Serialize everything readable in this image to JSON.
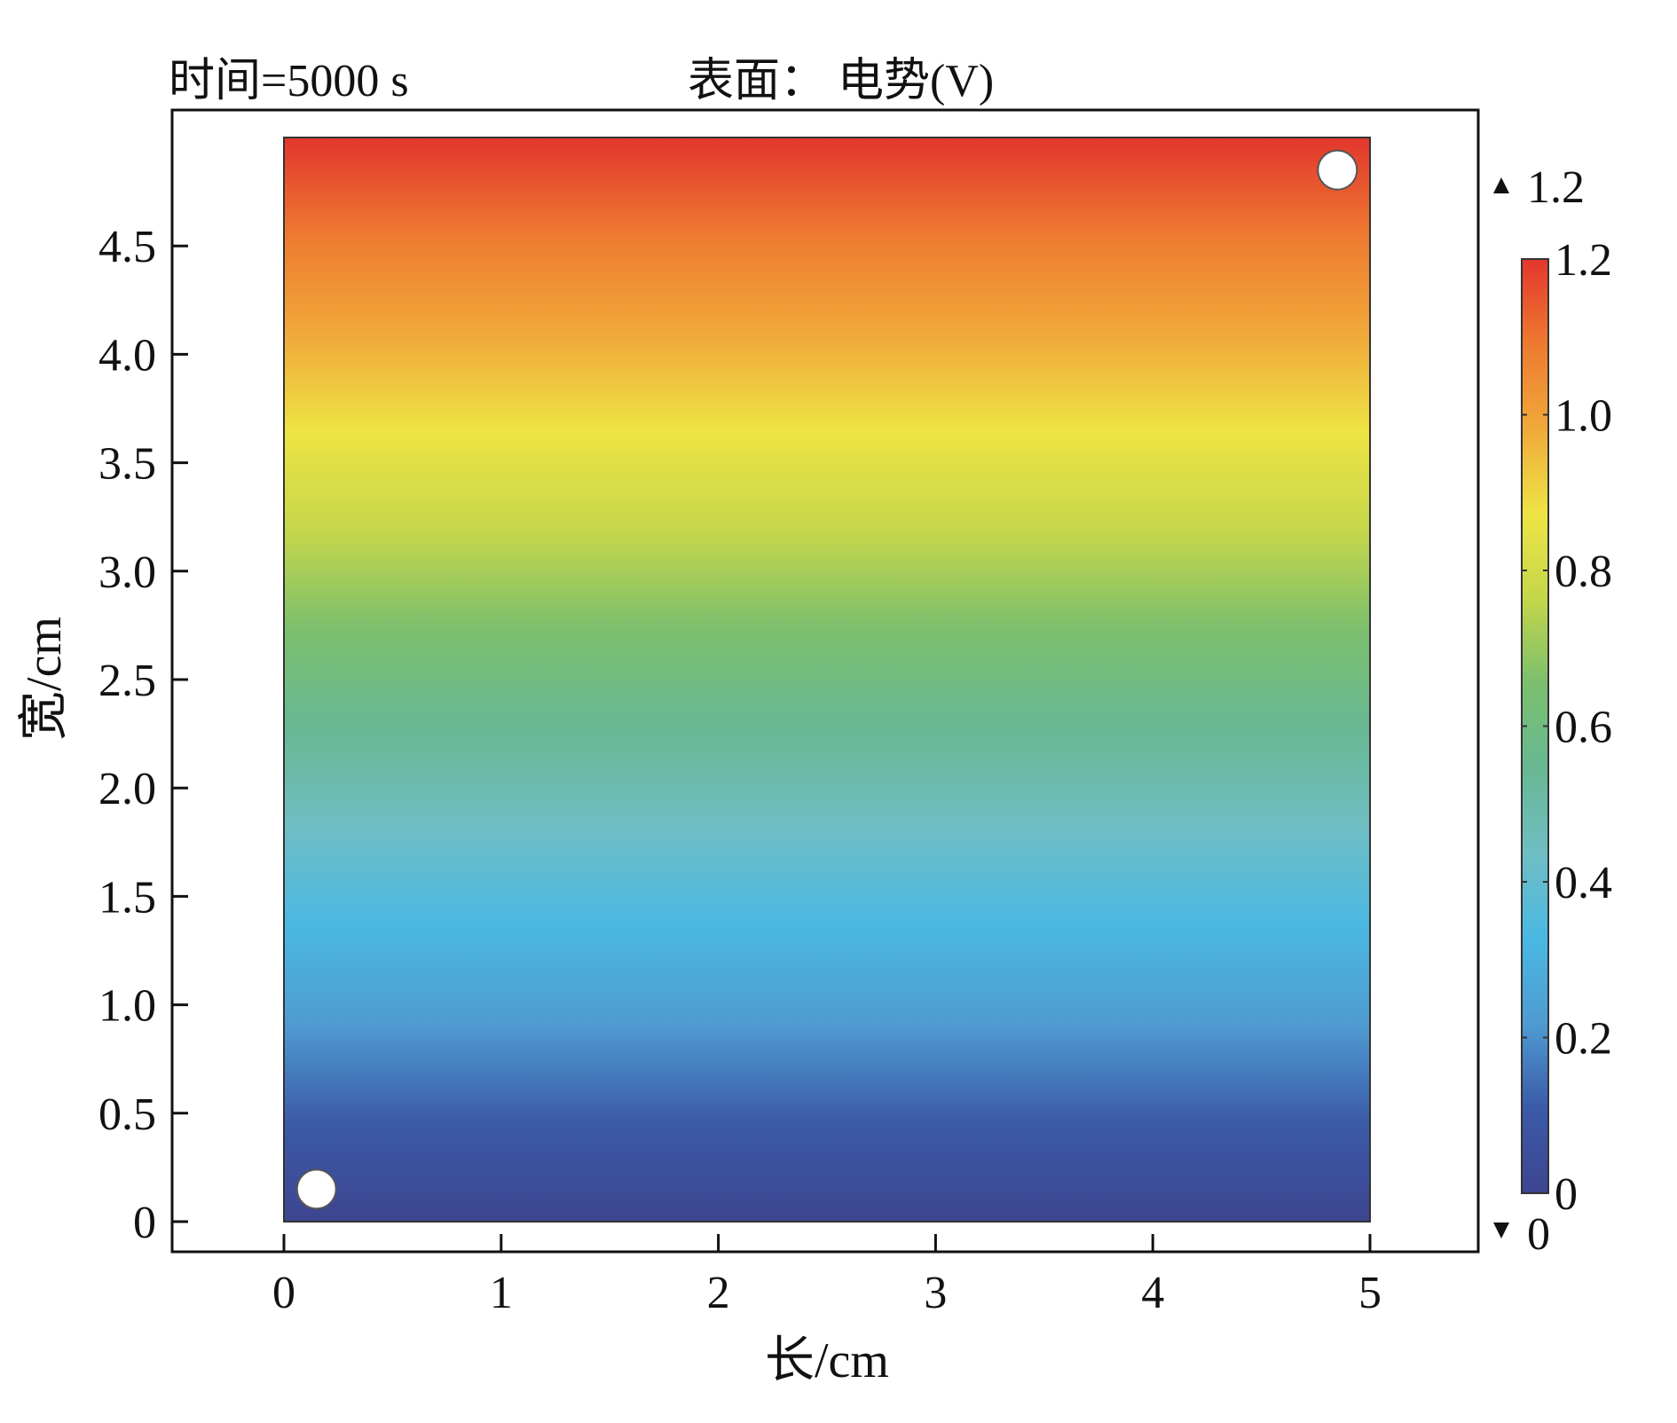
{
  "chart_data": {
    "type": "heatmap",
    "title_left": "时间=5000 s",
    "title_center": "表面： 电势(V)",
    "xlabel": "长/cm",
    "ylabel": "宽/cm",
    "xlim": [
      0,
      5
    ],
    "ylim": [
      0,
      5
    ],
    "x_ticks": [
      "0",
      "1",
      "2",
      "3",
      "4",
      "5"
    ],
    "y_ticks": [
      "0",
      "0.5",
      "1.0",
      "1.5",
      "2.0",
      "2.5",
      "3.0",
      "3.5",
      "4.0",
      "4.5"
    ],
    "field": "potential varies along y, uniform along x",
    "value_range": [
      0,
      1.2
    ],
    "colorbar": {
      "min": 0,
      "max": 1.2,
      "ticks": [
        "0",
        "0.2",
        "0.4",
        "0.6",
        "0.8",
        "1.0",
        "1.2"
      ],
      "max_marker_label": "1.2",
      "min_marker_label": "0",
      "colors": [
        "#3d4590",
        "#3b5aa8",
        "#4f9bd2",
        "#4ab8e2",
        "#6fbec4",
        "#68b893",
        "#7bbf6e",
        "#c4d64a",
        "#eee444",
        "#f0a93a",
        "#ee7a30",
        "#e3362d"
      ]
    },
    "electrodes": [
      {
        "x": 0.15,
        "y": 0.15
      },
      {
        "x": 4.85,
        "y": 4.85
      }
    ]
  }
}
